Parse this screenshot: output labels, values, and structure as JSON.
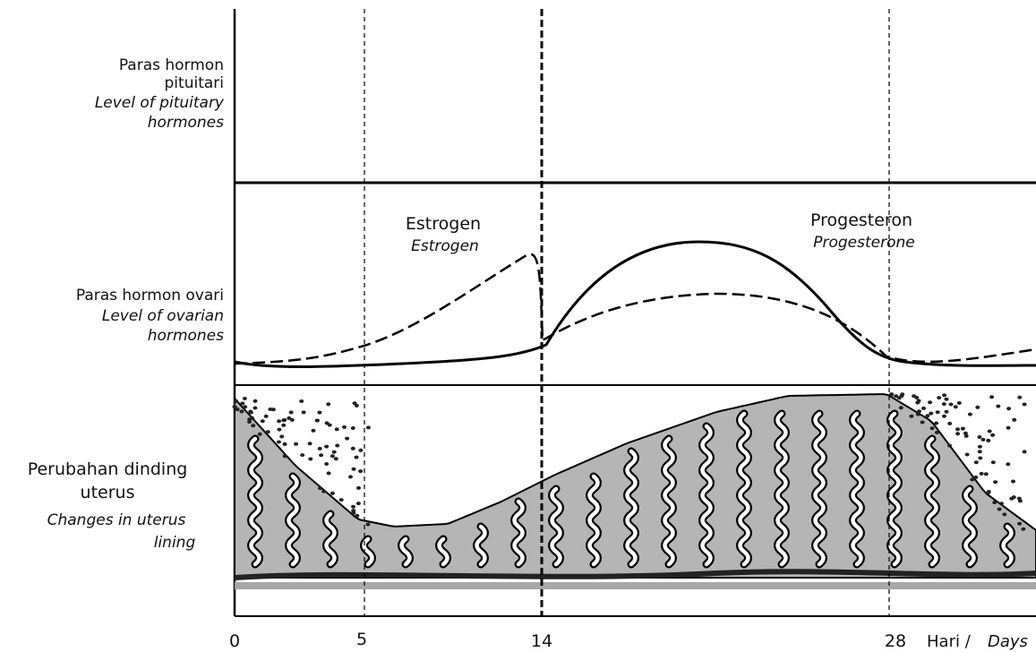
{
  "rows": [
    {
      "label": [
        "Paras hormon",
        "pituitari"
      ],
      "label_en": [
        "Level of pituitary",
        "hormones"
      ]
    },
    {
      "label": [
        "Paras hormon ovari"
      ],
      "label_en": [
        "Level of ovarian",
        "hormones"
      ]
    },
    {
      "label": [
        "Perubahan dinding",
        "uterus"
      ],
      "label_en": [
        "Changes in uterus",
        "lining"
      ]
    }
  ],
  "curves": [
    {
      "label": "Estrogen",
      "label_en": "Estrogen"
    },
    {
      "label": "Progesteron",
      "label_en": "Progesterone"
    }
  ],
  "x_axis": {
    "ticks": [
      "0",
      "5",
      "14",
      "28"
    ],
    "label": "Hari /",
    "label_en": "Days"
  }
}
